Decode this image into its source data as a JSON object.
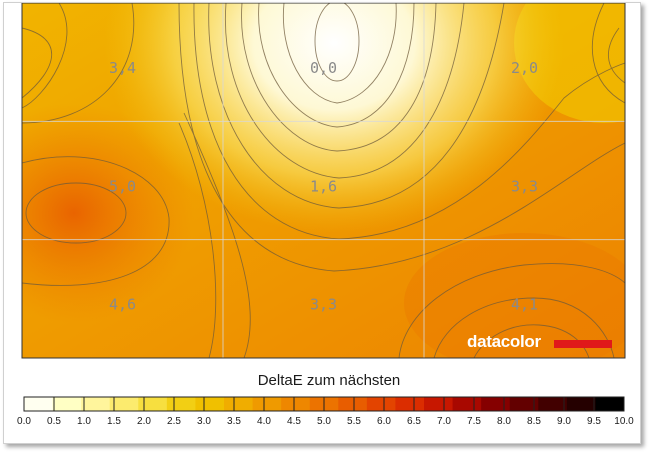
{
  "chart_data": {
    "type": "heatmap",
    "grid_rows": 3,
    "grid_cols": 3,
    "values": [
      [
        "3,4",
        "0,0",
        "2,0"
      ],
      [
        "5,0",
        "1,6",
        "3,3"
      ],
      [
        "4,6",
        "3,3",
        "4,1"
      ]
    ],
    "colorbar": {
      "title": "DeltaE zum nächsten",
      "min": 0.0,
      "max": 10.0,
      "step": 0.5,
      "tick_labels": [
        "0.0",
        "0.5",
        "1.0",
        "1.5",
        "2.0",
        "2.5",
        "3.0",
        "3.5",
        "4.0",
        "4.5",
        "5.0",
        "5.5",
        "6.0",
        "6.5",
        "7.0",
        "7.5",
        "8.0",
        "8.5",
        "9.0",
        "9.5",
        "10.0"
      ],
      "colors": [
        "#fffff0",
        "#ffffc4",
        "#fff59c",
        "#fceb6e",
        "#f7df3f",
        "#f2cf14",
        "#f0c000",
        "#f0ad00",
        "#ef9a00",
        "#ee8700",
        "#ec7300",
        "#e85d00",
        "#e34400",
        "#db2d00",
        "#c71700",
        "#a80800",
        "#850000",
        "#630000",
        "#420000",
        "#250000",
        "#000000"
      ]
    },
    "grid": true,
    "legend_position": "bottom"
  },
  "brand": {
    "name": "datacolor",
    "accent": "#e0191a"
  }
}
